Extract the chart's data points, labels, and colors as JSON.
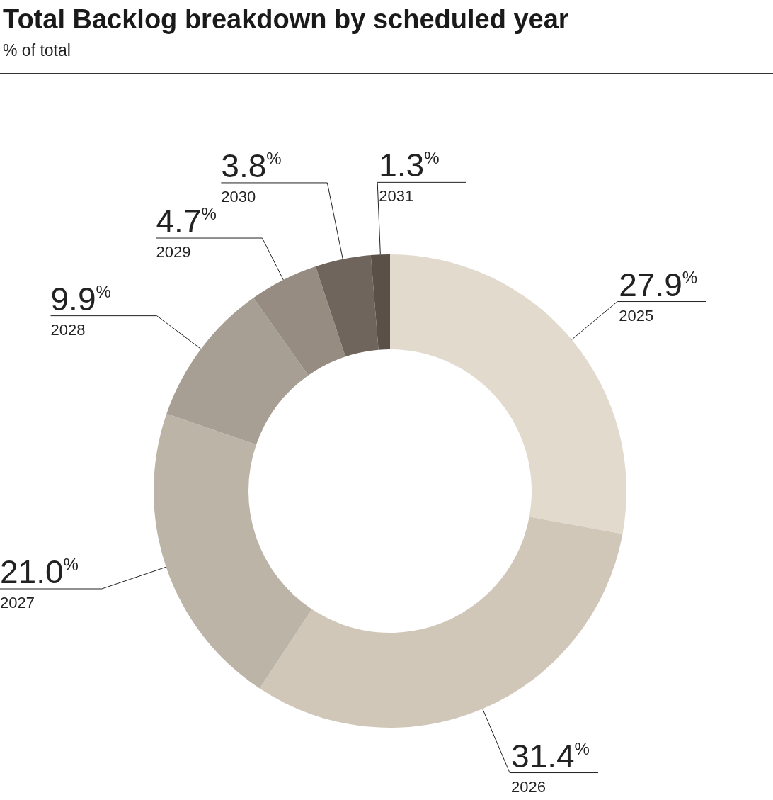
{
  "chart_data": {
    "type": "donut",
    "title": "Total Backlog breakdown by scheduled year",
    "subtitle": "% of total",
    "categories": [
      "2025",
      "2026",
      "2027",
      "2028",
      "2029",
      "2030",
      "2031"
    ],
    "values": [
      27.9,
      31.4,
      21.0,
      9.9,
      4.7,
      3.8,
      1.3
    ],
    "value_labels": [
      "27.9$^{%}$",
      "31.4$^{%}$",
      "21.0$^{%}$",
      "9.9$^{%}$",
      "4.7$^{%}$",
      "3.8$^{%}$",
      "1.3$^{%}$"
    ],
    "colors": [
      "#e2dacd",
      "#d0c7b9",
      "#bdb4a8",
      "#a79f93",
      "#968c81",
      "#6f655d",
      "#5a5048"
    ]
  }
}
